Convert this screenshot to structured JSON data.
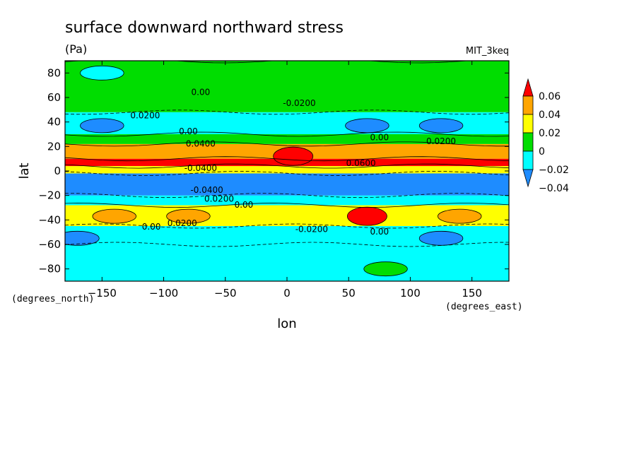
{
  "chart_data": {
    "type": "heatmap",
    "title": "surface downward northward stress",
    "units": "(Pa)",
    "model": "MIT_3keq",
    "xlabel": "lon",
    "ylabel": "lat",
    "x_units": "(degrees_east)",
    "y_units": "(degrees_north)",
    "xlim": [
      -180,
      180
    ],
    "ylim": [
      -90,
      90
    ],
    "xticks": [
      -150,
      -100,
      -50,
      0,
      50,
      100,
      150
    ],
    "yticks": [
      -80,
      -60,
      -40,
      -20,
      0,
      20,
      40,
      60,
      80
    ],
    "xtick_labels": [
      "−150",
      "−100",
      "−50",
      "0",
      "50",
      "100",
      "150"
    ],
    "ytick_labels": [
      "−80",
      "−60",
      "−40",
      "−20",
      "0",
      "20",
      "40",
      "60",
      "80"
    ],
    "colorbar": {
      "levels": [
        -0.04,
        -0.02,
        0,
        0.02,
        0.04,
        0.06
      ],
      "labels": [
        "−0.04",
        "−0.02",
        "0",
        "0.02",
        "0.04",
        "0.06"
      ],
      "colors": [
        "#1e8cff",
        "#00ffff",
        "#00dd00",
        "#ffff00",
        "#ffa500",
        "#ff0000"
      ],
      "extend": "both"
    },
    "bands": [
      {
        "lat": [
          -90,
          -60
        ],
        "value": -0.01
      },
      {
        "lat": [
          -60,
          -45
        ],
        "value": -0.01
      },
      {
        "lat": [
          -45,
          -28
        ],
        "value": 0.03
      },
      {
        "lat": [
          -28,
          -20
        ],
        "value": -0.015
      },
      {
        "lat": [
          -20,
          -2
        ],
        "value": -0.05
      },
      {
        "lat": [
          -2,
          4
        ],
        "value": 0.03
      },
      {
        "lat": [
          4,
          10
        ],
        "value": 0.065
      },
      {
        "lat": [
          10,
          22
        ],
        "value": 0.045
      },
      {
        "lat": [
          22,
          30
        ],
        "value": 0.015
      },
      {
        "lat": [
          30,
          48
        ],
        "value": -0.01
      },
      {
        "lat": [
          48,
          90
        ],
        "value": 0.01
      }
    ],
    "features": [
      {
        "lon": 65,
        "lat": -37,
        "value": 0.07
      },
      {
        "lon": -140,
        "lat": -37,
        "value": 0.045
      },
      {
        "lon": -80,
        "lat": -37,
        "value": 0.045
      },
      {
        "lon": 140,
        "lat": -37,
        "value": 0.045
      },
      {
        "lon": 65,
        "lat": 37,
        "value": -0.045
      },
      {
        "lon": -150,
        "lat": 37,
        "value": -0.04
      },
      {
        "lon": 125,
        "lat": 37,
        "value": -0.04
      },
      {
        "lon": 5,
        "lat": 12,
        "value": 0.07
      },
      {
        "lon": -170,
        "lat": -55,
        "value": -0.03
      },
      {
        "lon": 125,
        "lat": -55,
        "value": -0.03
      },
      {
        "lon": 80,
        "lat": -80,
        "value": 0.01
      },
      {
        "lon": -150,
        "lat": 80,
        "value": -0.01
      }
    ],
    "contour_labels": [
      "0.00",
      "-0.0200",
      "0.0200",
      "0.0400",
      "-0.0400",
      "0.0600"
    ]
  }
}
